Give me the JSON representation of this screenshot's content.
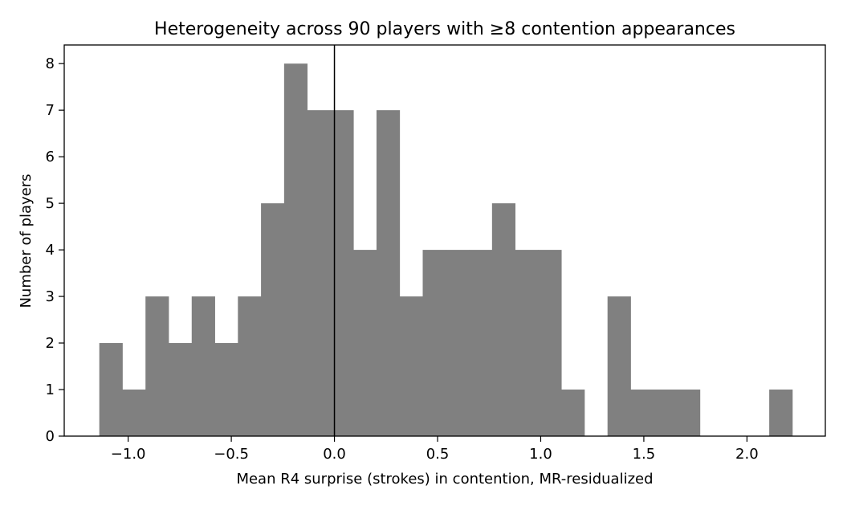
{
  "chart_data": {
    "type": "bar",
    "title": "Heterogeneity across 90 players with ≥8 contention appearances",
    "xlabel": "Mean R4 surprise (strokes) in contention, MR-residualized",
    "ylabel": "Number of players",
    "xlim": [
      -1.31,
      2.38
    ],
    "ylim": [
      0,
      8.4
    ],
    "bin_start": -1.14,
    "bin_width": 0.112,
    "counts": [
      2,
      1,
      3,
      2,
      3,
      2,
      3,
      5,
      8,
      7,
      7,
      4,
      7,
      3,
      4,
      4,
      4,
      5,
      4,
      4,
      1,
      0,
      3,
      1,
      1,
      1,
      0,
      0,
      0,
      1
    ],
    "vline_x": 0.0,
    "bar_color": "#808080",
    "x_ticks": [
      {
        "value": -1.0,
        "label": "−1.0"
      },
      {
        "value": -0.5,
        "label": "−0.5"
      },
      {
        "value": 0.0,
        "label": "0.0"
      },
      {
        "value": 0.5,
        "label": "0.5"
      },
      {
        "value": 1.0,
        "label": "1.0"
      },
      {
        "value": 1.5,
        "label": "1.5"
      },
      {
        "value": 2.0,
        "label": "2.0"
      }
    ],
    "y_ticks": [
      {
        "value": 0,
        "label": "0"
      },
      {
        "value": 1,
        "label": "1"
      },
      {
        "value": 2,
        "label": "2"
      },
      {
        "value": 3,
        "label": "3"
      },
      {
        "value": 4,
        "label": "4"
      },
      {
        "value": 5,
        "label": "5"
      },
      {
        "value": 6,
        "label": "6"
      },
      {
        "value": 7,
        "label": "7"
      },
      {
        "value": 8,
        "label": "8"
      }
    ],
    "grid": false,
    "legend": "none"
  }
}
